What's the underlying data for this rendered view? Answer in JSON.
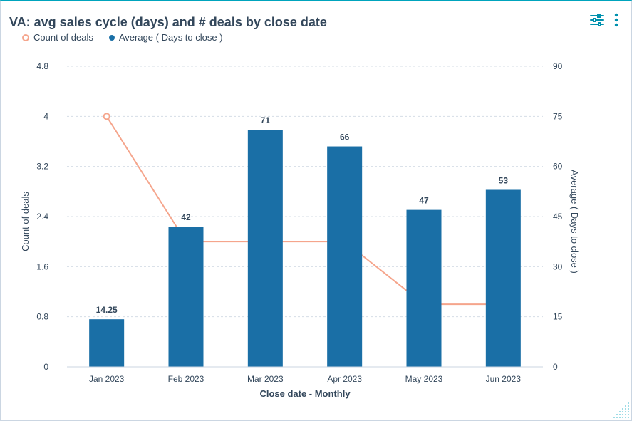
{
  "card": {
    "title": "VA: avg sales cycle (days) and # deals by close date"
  },
  "toolbar": {
    "filter_icon": "sliders-icon",
    "menu_icon": "more-vertical-icon"
  },
  "colors": {
    "bar": "#1a6fa6",
    "line": "#f5a58c",
    "text": "#33475b",
    "accent": "#00a4bd"
  },
  "chart_data": {
    "type": "bar",
    "categories": [
      "Jan 2023",
      "Feb 2023",
      "Mar 2023",
      "Apr 2023",
      "May 2023",
      "Jun 2023"
    ],
    "xlabel": "Close date - Monthly",
    "legend_placement": "top-left",
    "grid": true,
    "series": [
      {
        "name": "Count of deals",
        "type": "line",
        "axis": "left",
        "values": [
          4,
          2,
          2,
          2,
          1,
          1
        ]
      },
      {
        "name": "Average ( Days to close )",
        "type": "bar",
        "axis": "right",
        "values": [
          14.25,
          42,
          71,
          66,
          47,
          53
        ],
        "data_labels": [
          "14.25",
          "42",
          "71",
          "66",
          "47",
          "53"
        ]
      }
    ],
    "y_left": {
      "label": "Count of deals",
      "ylim": [
        0,
        4.8
      ],
      "ticks": [
        "0",
        "0.8",
        "1.6",
        "2.4",
        "3.2",
        "4",
        "4.8"
      ]
    },
    "y_right": {
      "label": "Average ( Days to close )",
      "ylim": [
        0,
        90
      ],
      "ticks": [
        "0",
        "15",
        "30",
        "45",
        "60",
        "75",
        "90"
      ]
    }
  }
}
